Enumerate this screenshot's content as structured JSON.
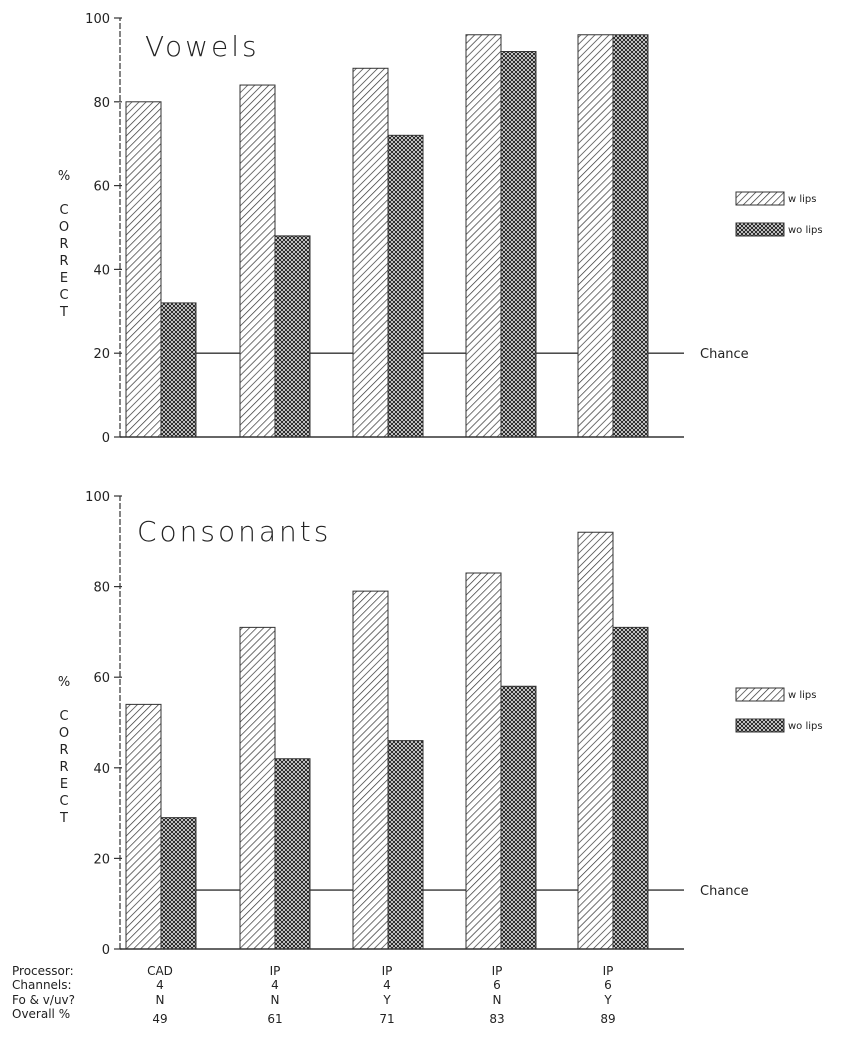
{
  "chart_data": [
    {
      "type": "bar",
      "title": "Vowels",
      "ylabel": "% CORRECT",
      "ylim": [
        0,
        100
      ],
      "yticks": [
        "0",
        "20",
        "40",
        "60",
        "80",
        "100"
      ],
      "categories": [
        "CAD",
        "IP",
        "IP",
        "IP",
        "IP"
      ],
      "series": [
        {
          "name": "w lips",
          "values": [
            80,
            84,
            88,
            96,
            96
          ]
        },
        {
          "name": "wo lips",
          "values": [
            32,
            48,
            72,
            92,
            96
          ]
        }
      ],
      "chance": {
        "label": "Chance",
        "value": 20
      },
      "legend_position": "right"
    },
    {
      "type": "bar",
      "title": "Consonants",
      "ylabel": "% CORRECT",
      "ylim": [
        0,
        100
      ],
      "yticks": [
        "0",
        "20",
        "40",
        "60",
        "80",
        "100"
      ],
      "categories": [
        "CAD",
        "IP",
        "IP",
        "IP",
        "IP"
      ],
      "series": [
        {
          "name": "w lips",
          "values": [
            54,
            71,
            79,
            83,
            92
          ]
        },
        {
          "name": "wo lips",
          "values": [
            29,
            42,
            46,
            58,
            71
          ]
        }
      ],
      "chance": {
        "label": "Chance",
        "value": 13
      },
      "legend_position": "right"
    }
  ],
  "conditions_table": {
    "row_labels": [
      "Processor:",
      "Channels:",
      "Fo & v/uv?",
      "Overall %"
    ],
    "columns": [
      [
        "CAD",
        "4",
        "N",
        "49"
      ],
      [
        "IP",
        "4",
        "N",
        "61"
      ],
      [
        "IP",
        "4",
        "Y",
        "71"
      ],
      [
        "IP",
        "6",
        "N",
        "83"
      ],
      [
        "IP",
        "6",
        "Y",
        "89"
      ]
    ]
  }
}
